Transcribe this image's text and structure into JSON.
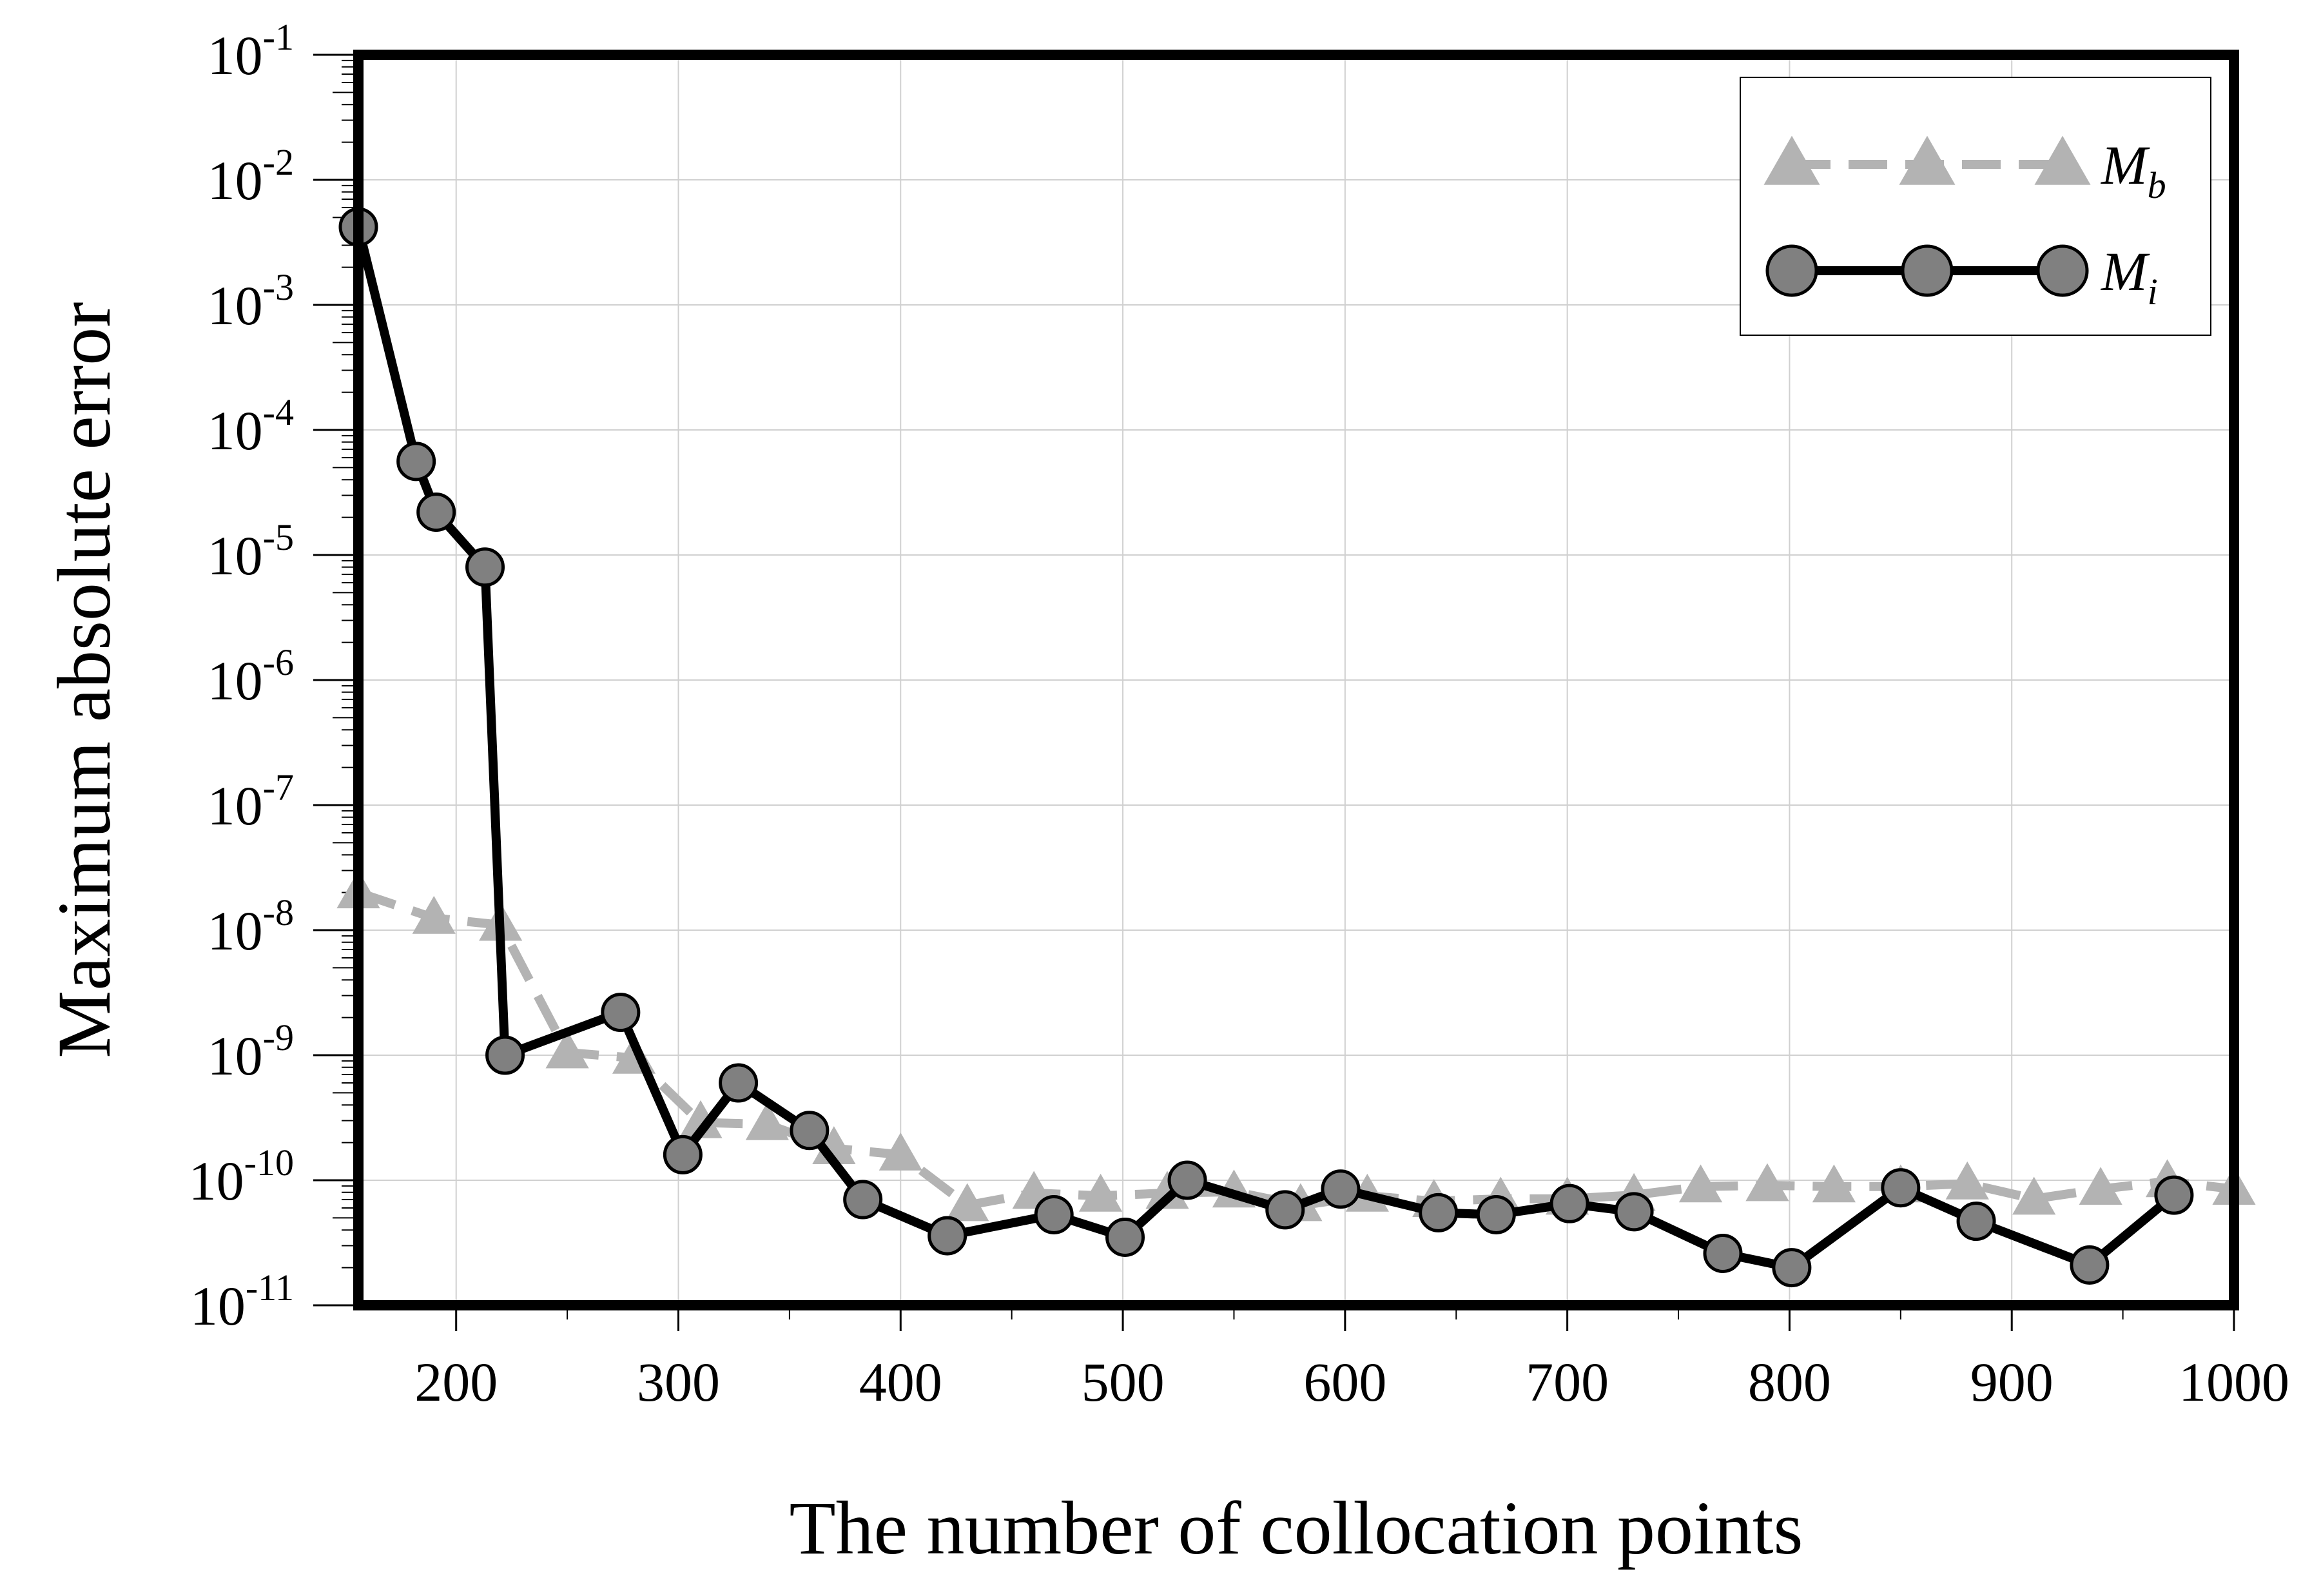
{
  "chart_data": {
    "type": "line",
    "xlabel": "The number of collocation points",
    "ylabel": "Maximum absolute error",
    "x_scale": "linear",
    "y_scale": "log",
    "xlim": [
      156,
      1000
    ],
    "ylim": [
      1e-11,
      0.1
    ],
    "x_ticks": [
      200,
      300,
      400,
      500,
      600,
      700,
      800,
      900,
      1000
    ],
    "x_tick_labels": [
      "200",
      "300",
      "400",
      "500",
      "600",
      "700",
      "800",
      "900",
      "1000"
    ],
    "y_ticks": [
      1e-11,
      1e-10,
      1e-09,
      1e-08,
      1e-07,
      1e-06,
      1e-05,
      0.0001,
      0.001,
      0.01,
      0.1
    ],
    "y_tick_labels": [
      {
        "base": "10",
        "exp": "-11"
      },
      {
        "base": "10",
        "exp": "-10"
      },
      {
        "base": "10",
        "exp": "-9"
      },
      {
        "base": "10",
        "exp": "-8"
      },
      {
        "base": "10",
        "exp": "-7"
      },
      {
        "base": "10",
        "exp": "-6"
      },
      {
        "base": "10",
        "exp": "-5"
      },
      {
        "base": "10",
        "exp": "-4"
      },
      {
        "base": "10",
        "exp": "-3"
      },
      {
        "base": "10",
        "exp": "-2"
      },
      {
        "base": "10",
        "exp": "-1"
      }
    ],
    "grid": true,
    "legend_position": "top-right",
    "series": [
      {
        "name": "M",
        "name_subscript": "b",
        "color": "#b3b3b3",
        "line_style": "dashed",
        "marker": "triangle",
        "x": [
          156,
          190,
          220,
          250,
          280,
          310,
          340,
          370,
          400,
          430,
          460,
          490,
          520,
          550,
          580,
          610,
          640,
          670,
          700,
          730,
          760,
          790,
          820,
          850,
          880,
          910,
          940,
          970,
          1000
        ],
        "y": [
          2e-08,
          1.25e-08,
          1.1e-08,
          1.05e-09,
          9.5e-10,
          2.9e-10,
          2.8e-10,
          1.8e-10,
          1.6e-10,
          6.3e-11,
          7.9e-11,
          7.5e-11,
          7.9e-11,
          8.1e-11,
          6.3e-11,
          7.5e-11,
          6.8e-11,
          7.1e-11,
          7.1e-11,
          7.6e-11,
          8.9e-11,
          9.1e-11,
          8.9e-11,
          8.9e-11,
          9.4e-11,
          7.1e-11,
          8.5e-11,
          9.8e-11,
          8.5e-11
        ]
      },
      {
        "name": "M",
        "name_subscript": "i",
        "color": "#808080",
        "line_color": "#000000",
        "line_style": "solid",
        "marker": "circle",
        "x": [
          156,
          182,
          191,
          213,
          222,
          274,
          302,
          327,
          359,
          383,
          421,
          469,
          501,
          529,
          573,
          598,
          642,
          668,
          701,
          730,
          770,
          801,
          850,
          884,
          935,
          973
        ],
        "y": [
          0.0042,
          5.6e-05,
          2.2e-05,
          8e-06,
          1e-09,
          2.2e-09,
          1.6e-10,
          6e-10,
          2.5e-10,
          7e-11,
          3.6e-11,
          5.3e-11,
          3.5e-11,
          1e-10,
          5.8e-11,
          8.5e-11,
          5.5e-11,
          5.3e-11,
          6.5e-11,
          5.6e-11,
          2.6e-11,
          2e-11,
          8.7e-11,
          4.7e-11,
          2.1e-11,
          7.6e-11
        ]
      }
    ]
  }
}
